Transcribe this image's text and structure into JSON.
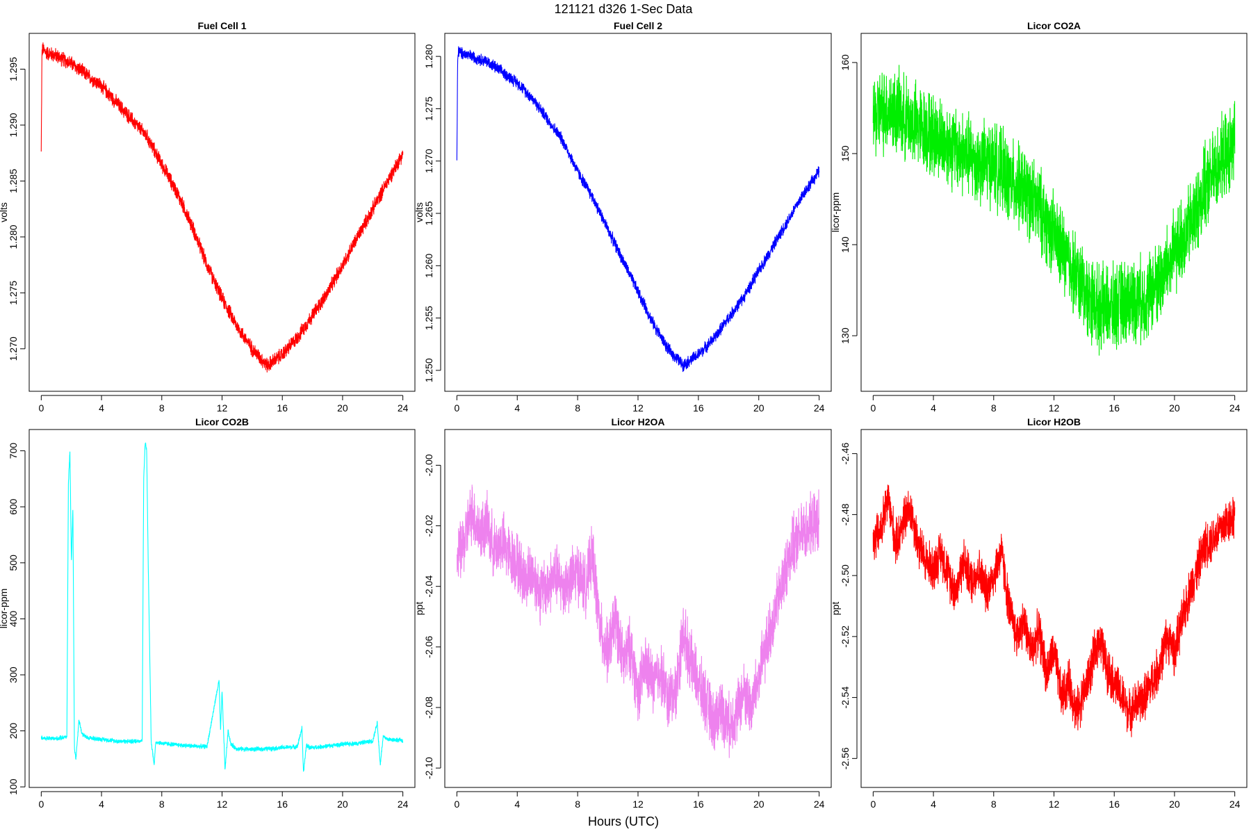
{
  "figure": {
    "suptitle": "121121   d326   1-Sec Data",
    "xlabel": "Hours (UTC)"
  },
  "chart_data": [
    {
      "type": "line",
      "title": "Fuel Cell 1",
      "ylabel": "volts",
      "color": "#ff0000",
      "xlim": [
        -0.8,
        24.8
      ],
      "ylim": [
        1.2662,
        1.2982
      ],
      "xticks": [
        0,
        4,
        8,
        12,
        16,
        20,
        24
      ],
      "yticks": [
        1.27,
        1.275,
        1.28,
        1.285,
        1.29,
        1.295
      ],
      "ytick_labels": [
        "1.270",
        "1.275",
        "1.280",
        "1.285",
        "1.290",
        "1.295"
      ],
      "noise": 0.0008,
      "x": [
        0,
        0.05,
        0.1,
        0.3,
        1,
        2,
        3,
        4,
        5,
        6,
        7,
        8,
        9,
        10,
        11,
        12,
        13,
        14,
        15,
        16,
        17,
        18,
        19,
        20,
        21,
        22,
        23,
        24
      ],
      "y": [
        1.2875,
        1.2965,
        1.2968,
        1.2965,
        1.2962,
        1.2955,
        1.2945,
        1.2935,
        1.292,
        1.2905,
        1.289,
        1.2865,
        1.284,
        1.281,
        1.2775,
        1.2745,
        1.272,
        1.27,
        1.2685,
        1.2695,
        1.271,
        1.273,
        1.275,
        1.2775,
        1.28,
        1.2825,
        1.285,
        1.2875
      ]
    },
    {
      "type": "line",
      "title": "Fuel Cell 2",
      "ylabel": "volts",
      "color": "#0000ff",
      "xlim": [
        -0.8,
        24.8
      ],
      "ylim": [
        1.248,
        1.2822
      ],
      "xticks": [
        0,
        4,
        8,
        12,
        16,
        20,
        24
      ],
      "yticks": [
        1.25,
        1.255,
        1.26,
        1.265,
        1.27,
        1.275,
        1.28
      ],
      "ytick_labels": [
        "1.250",
        "1.255",
        "1.260",
        "1.265",
        "1.270",
        "1.275",
        "1.280"
      ],
      "noise": 0.0007,
      "x": [
        0,
        0.05,
        0.1,
        0.3,
        1,
        2,
        3,
        4,
        5,
        6,
        7,
        8,
        9,
        10,
        11,
        12,
        13,
        14,
        15,
        16,
        17,
        18,
        19,
        20,
        21,
        22,
        23,
        24
      ],
      "y": [
        1.27,
        1.2795,
        1.2805,
        1.2803,
        1.28,
        1.2795,
        1.2785,
        1.2775,
        1.276,
        1.274,
        1.272,
        1.269,
        1.2665,
        1.2635,
        1.2605,
        1.2575,
        1.2545,
        1.252,
        1.2505,
        1.2515,
        1.253,
        1.255,
        1.257,
        1.2595,
        1.262,
        1.2645,
        1.267,
        1.269
      ]
    },
    {
      "type": "line",
      "title": "Licor CO2A",
      "ylabel": "licor-ppm",
      "color": "#00ee00",
      "xlim": [
        -0.8,
        24.8
      ],
      "ylim": [
        123.9,
        163.2
      ],
      "xticks": [
        0,
        4,
        8,
        12,
        16,
        20,
        24
      ],
      "yticks": [
        130,
        140,
        150,
        160
      ],
      "ytick_labels": [
        "130",
        "140",
        "150",
        "160"
      ],
      "noise": 5.5,
      "x": [
        0,
        1,
        2,
        3,
        4,
        5,
        6,
        7,
        8,
        9,
        10,
        11,
        12,
        13,
        14,
        15,
        16,
        17,
        18,
        19,
        20,
        21,
        22,
        23,
        24
      ],
      "y": [
        154,
        155,
        154,
        153,
        152,
        151,
        150,
        149,
        149,
        147,
        146,
        144,
        141,
        138,
        135,
        133,
        133,
        134,
        134,
        136,
        139,
        142,
        146,
        149,
        151
      ]
    },
    {
      "type": "line",
      "title": "Licor CO2B",
      "ylabel": "licor-ppm",
      "color": "#00ffff",
      "xlim": [
        -0.8,
        24.8
      ],
      "ylim": [
        99,
        738
      ],
      "xticks": [
        0,
        4,
        8,
        12,
        16,
        20,
        24
      ],
      "yticks": [
        100,
        200,
        300,
        400,
        500,
        600,
        700
      ],
      "ytick_labels": [
        "100",
        "200",
        "300",
        "400",
        "500",
        "600",
        "700"
      ],
      "noise": 5,
      "x": [
        0,
        1,
        1.7,
        1.8,
        1.9,
        2.0,
        2.1,
        2.2,
        2.3,
        2.5,
        2.7,
        3.0,
        4,
        5,
        6,
        6.7,
        6.8,
        6.9,
        7.0,
        7.1,
        7.3,
        7.5,
        7.6,
        8,
        9,
        10,
        11,
        11.8,
        11.9,
        12.0,
        12.2,
        12.4,
        12.6,
        13,
        14,
        15,
        16,
        17,
        17.3,
        17.4,
        17.6,
        17.8,
        18,
        19,
        20,
        21,
        22,
        22.3,
        22.5,
        22.7,
        23,
        24
      ],
      "y": [
        187,
        186,
        190,
        640,
        700,
        500,
        600,
        170,
        150,
        220,
        195,
        188,
        185,
        182,
        181,
        183,
        650,
        715,
        700,
        500,
        180,
        140,
        180,
        178,
        175,
        173,
        172,
        290,
        200,
        270,
        130,
        200,
        175,
        168,
        167,
        168,
        170,
        172,
        205,
        125,
        175,
        170,
        170,
        173,
        176,
        178,
        182,
        215,
        140,
        190,
        185,
        183
      ]
    },
    {
      "type": "line",
      "title": "Licor H2OA",
      "ylabel": "ppt",
      "color": "#ee82ee",
      "xlim": [
        -0.8,
        24.8
      ],
      "ylim": [
        -2.1064,
        -1.9882
      ],
      "xticks": [
        0,
        4,
        8,
        12,
        16,
        20,
        24
      ],
      "yticks": [
        -2.1,
        -2.08,
        -2.06,
        -2.04,
        -2.02,
        -2.0
      ],
      "ytick_labels": [
        "-2.10",
        "-2.08",
        "-2.06",
        "-2.04",
        "-2.02",
        "-2.00"
      ],
      "noise": 0.012,
      "x": [
        0,
        0.5,
        1,
        1.5,
        2,
        2.5,
        3,
        3.5,
        4,
        4.5,
        5,
        5.5,
        6,
        6.5,
        7,
        7.5,
        8,
        8.5,
        9,
        9.5,
        10,
        10.5,
        11,
        11.5,
        12,
        12.5,
        13,
        13.5,
        14,
        14.5,
        15,
        15.5,
        16,
        16.5,
        17,
        17.5,
        18,
        18.5,
        19,
        19.5,
        20,
        20.5,
        21,
        21.5,
        22,
        22.5,
        23,
        23.5,
        24
      ],
      "y": [
        -2.032,
        -2.025,
        -2.015,
        -2.022,
        -2.02,
        -2.028,
        -2.025,
        -2.03,
        -2.032,
        -2.038,
        -2.035,
        -2.042,
        -2.04,
        -2.036,
        -2.04,
        -2.038,
        -2.035,
        -2.04,
        -2.03,
        -2.055,
        -2.062,
        -2.05,
        -2.065,
        -2.06,
        -2.075,
        -2.066,
        -2.072,
        -2.068,
        -2.078,
        -2.074,
        -2.055,
        -2.065,
        -2.072,
        -2.078,
        -2.085,
        -2.08,
        -2.086,
        -2.082,
        -2.075,
        -2.08,
        -2.07,
        -2.06,
        -2.05,
        -2.04,
        -2.03,
        -2.025,
        -2.022,
        -2.02,
        -2.018
      ]
    },
    {
      "type": "line",
      "title": "Licor H2OB",
      "ylabel": "ppt",
      "color": "#ff0000",
      "xlim": [
        -0.8,
        24.8
      ],
      "ylim": [
        -2.5695,
        -2.4521
      ],
      "xticks": [
        0,
        4,
        8,
        12,
        16,
        20,
        24
      ],
      "yticks": [
        -2.56,
        -2.54,
        -2.52,
        -2.5,
        -2.48,
        -2.46
      ],
      "ytick_labels": [
        "-2.56",
        "-2.54",
        "-2.52",
        "-2.50",
        "-2.48",
        "-2.46"
      ],
      "noise": 0.009,
      "x": [
        0,
        0.5,
        1,
        1.5,
        2,
        2.5,
        3,
        3.5,
        4,
        4.5,
        5,
        5.5,
        6,
        6.5,
        7,
        7.5,
        8,
        8.5,
        9,
        9.5,
        10,
        10.5,
        11,
        11.5,
        12,
        12.5,
        13,
        13.5,
        14,
        14.5,
        15,
        15.5,
        16,
        16.5,
        17,
        17.5,
        18,
        18.5,
        19,
        19.5,
        20,
        20.5,
        21,
        21.5,
        22,
        22.5,
        23,
        23.5,
        24
      ],
      "y": [
        -2.49,
        -2.485,
        -2.475,
        -2.49,
        -2.482,
        -2.478,
        -2.49,
        -2.495,
        -2.498,
        -2.492,
        -2.5,
        -2.505,
        -2.495,
        -2.502,
        -2.498,
        -2.505,
        -2.5,
        -2.492,
        -2.51,
        -2.52,
        -2.515,
        -2.525,
        -2.518,
        -2.532,
        -2.525,
        -2.54,
        -2.535,
        -2.545,
        -2.538,
        -2.53,
        -2.52,
        -2.53,
        -2.535,
        -2.54,
        -2.545,
        -2.542,
        -2.54,
        -2.535,
        -2.53,
        -2.52,
        -2.525,
        -2.515,
        -2.505,
        -2.498,
        -2.49,
        -2.488,
        -2.485,
        -2.482,
        -2.48
      ]
    }
  ]
}
